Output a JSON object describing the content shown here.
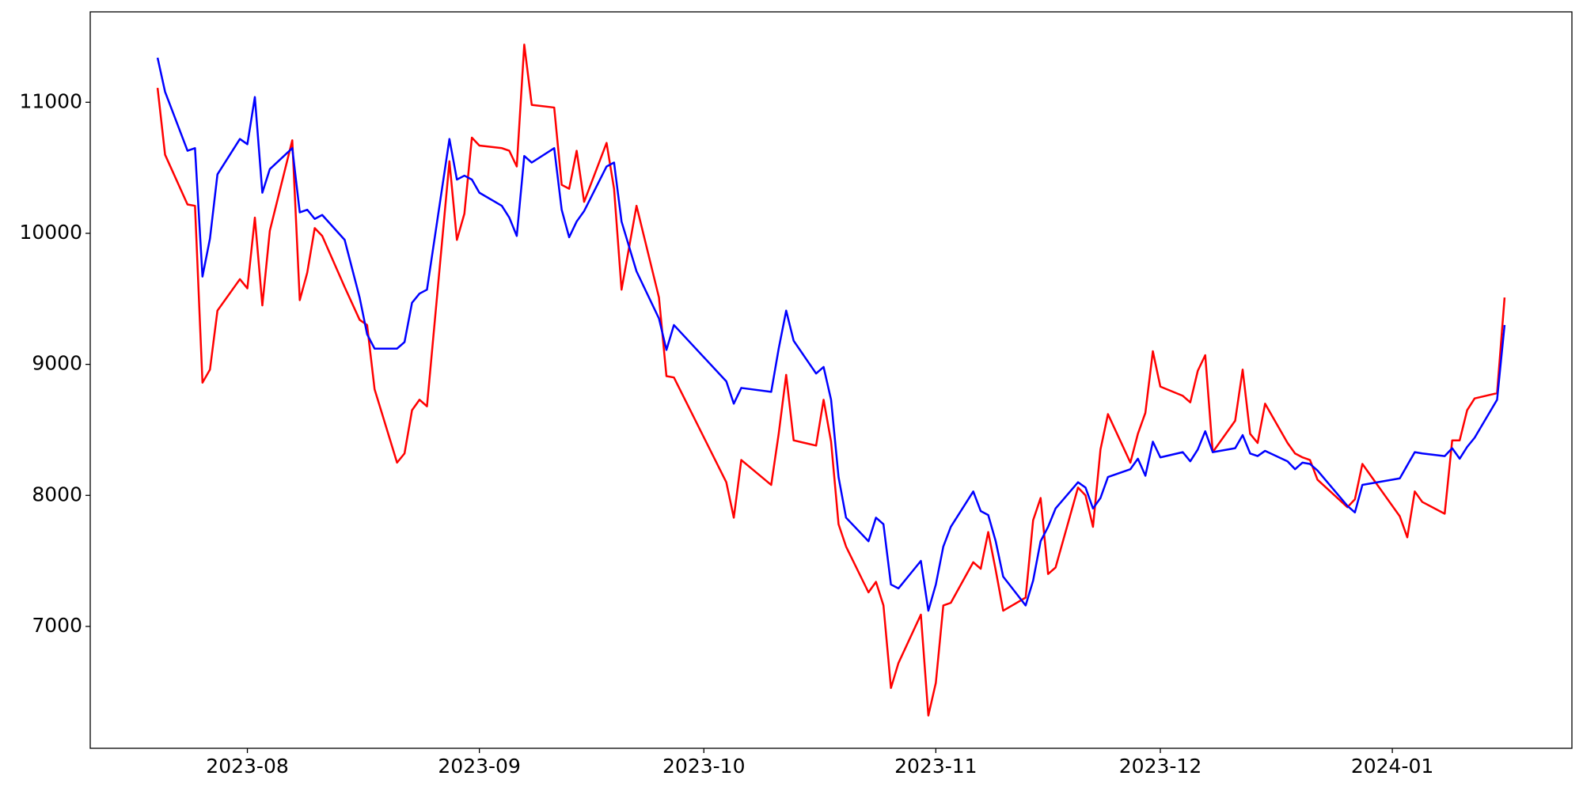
{
  "chart_data": {
    "type": "line",
    "x": [
      "2023-07-20",
      "2023-07-21",
      "2023-07-24",
      "2023-07-25",
      "2023-07-26",
      "2023-07-27",
      "2023-07-28",
      "2023-07-31",
      "2023-08-01",
      "2023-08-02",
      "2023-08-03",
      "2023-08-04",
      "2023-08-07",
      "2023-08-08",
      "2023-08-09",
      "2023-08-10",
      "2023-08-11",
      "2023-08-14",
      "2023-08-16",
      "2023-08-17",
      "2023-08-18",
      "2023-08-21",
      "2023-08-22",
      "2023-08-23",
      "2023-08-24",
      "2023-08-25",
      "2023-08-28",
      "2023-08-29",
      "2023-08-30",
      "2023-08-31",
      "2023-09-01",
      "2023-09-04",
      "2023-09-05",
      "2023-09-06",
      "2023-09-07",
      "2023-09-08",
      "2023-09-11",
      "2023-09-12",
      "2023-09-13",
      "2023-09-14",
      "2023-09-15",
      "2023-09-18",
      "2023-09-19",
      "2023-09-20",
      "2023-09-22",
      "2023-09-25",
      "2023-09-26",
      "2023-09-27",
      "2023-10-04",
      "2023-10-05",
      "2023-10-06",
      "2023-10-10",
      "2023-10-11",
      "2023-10-12",
      "2023-10-13",
      "2023-10-16",
      "2023-10-17",
      "2023-10-18",
      "2023-10-19",
      "2023-10-20",
      "2023-10-23",
      "2023-10-24",
      "2023-10-25",
      "2023-10-26",
      "2023-10-27",
      "2023-10-30",
      "2023-10-31",
      "2023-11-01",
      "2023-11-02",
      "2023-11-03",
      "2023-11-06",
      "2023-11-07",
      "2023-11-08",
      "2023-11-09",
      "2023-11-10",
      "2023-11-13",
      "2023-11-14",
      "2023-11-15",
      "2023-11-16",
      "2023-11-17",
      "2023-11-20",
      "2023-11-21",
      "2023-11-22",
      "2023-11-23",
      "2023-11-24",
      "2023-11-27",
      "2023-11-28",
      "2023-11-29",
      "2023-11-30",
      "2023-12-01",
      "2023-12-04",
      "2023-12-05",
      "2023-12-06",
      "2023-12-07",
      "2023-12-08",
      "2023-12-11",
      "2023-12-12",
      "2023-12-13",
      "2023-12-14",
      "2023-12-15",
      "2023-12-18",
      "2023-12-19",
      "2023-12-20",
      "2023-12-21",
      "2023-12-22",
      "2023-12-26",
      "2023-12-27",
      "2023-12-28",
      "2024-01-02",
      "2024-01-03",
      "2024-01-04",
      "2024-01-05",
      "2024-01-08",
      "2024-01-09",
      "2024-01-10",
      "2024-01-11",
      "2024-01-12",
      "2024-01-15",
      "2024-01-16"
    ],
    "series": [
      {
        "color": "red",
        "values": [
          11110,
          10600,
          10220,
          10210,
          8860,
          8960,
          9410,
          9650,
          9580,
          10120,
          9450,
          10020,
          10710,
          9490,
          9700,
          10040,
          9980,
          9590,
          9340,
          9300,
          8810,
          8250,
          8320,
          8650,
          8730,
          8680,
          10550,
          9950,
          10150,
          10730,
          10670,
          10650,
          10630,
          10510,
          11440,
          10980,
          10960,
          10370,
          10340,
          10630,
          10240,
          10690,
          10340,
          9570,
          10210,
          9510,
          8910,
          8900,
          8100,
          7830,
          8270,
          8080,
          8470,
          8920,
          8420,
          8380,
          8730,
          8410,
          7780,
          7610,
          7260,
          7340,
          7160,
          6530,
          6720,
          7090,
          6320,
          6570,
          7160,
          7180,
          7490,
          7440,
          7720,
          7430,
          7120,
          7220,
          7810,
          7980,
          7400,
          7450,
          8060,
          8000,
          7760,
          8350,
          8620,
          8250,
          8470,
          8630,
          9100,
          8830,
          8760,
          8710,
          8950,
          9070,
          8330,
          8570,
          8960,
          8470,
          8400,
          8700,
          8400,
          8320,
          8290,
          8270,
          8120,
          7910,
          7970,
          8240,
          7840,
          7680,
          8030,
          7950,
          7860,
          8420,
          8420,
          8650,
          8740,
          8780,
          9510
        ]
      },
      {
        "color": "blue",
        "values": [
          11340,
          11080,
          10630,
          10650,
          9670,
          9960,
          10450,
          10720,
          10680,
          11040,
          10310,
          10490,
          10650,
          10160,
          10180,
          10110,
          10140,
          9950,
          9510,
          9230,
          9120,
          9120,
          9170,
          9470,
          9540,
          9570,
          10720,
          10410,
          10440,
          10410,
          10310,
          10210,
          10120,
          9980,
          10590,
          10540,
          10650,
          10180,
          9970,
          10090,
          10170,
          10510,
          10540,
          10090,
          9710,
          9350,
          9110,
          9300,
          8870,
          8700,
          8820,
          8790,
          9120,
          9410,
          9180,
          8930,
          8980,
          8730,
          8140,
          7830,
          7650,
          7830,
          7780,
          7320,
          7290,
          7500,
          7120,
          7320,
          7610,
          7760,
          8030,
          7880,
          7850,
          7650,
          7380,
          7160,
          7350,
          7650,
          7760,
          7900,
          8100,
          8060,
          7900,
          7980,
          8140,
          8200,
          8280,
          8150,
          8410,
          8290,
          8330,
          8260,
          8350,
          8490,
          8330,
          8360,
          8460,
          8320,
          8300,
          8340,
          8260,
          8200,
          8250,
          8240,
          8190,
          7920,
          7870,
          8080,
          8130,
          8230,
          8330,
          8320,
          8300,
          8360,
          8280,
          8370,
          8440,
          8730,
          9300
        ]
      }
    ],
    "xlim": [
      "2023-07-11",
      "2024-01-25"
    ],
    "xticks": [
      {
        "value": "2023-08-01",
        "label": "2023-08"
      },
      {
        "value": "2023-09-01",
        "label": "2023-09"
      },
      {
        "value": "2023-10-01",
        "label": "2023-10"
      },
      {
        "value": "2023-11-01",
        "label": "2023-11"
      },
      {
        "value": "2023-12-01",
        "label": "2023-12"
      },
      {
        "value": "2024-01-01",
        "label": "2024-01"
      }
    ],
    "ylim": [
      6070,
      11690
    ],
    "yticks": [
      7000,
      8000,
      9000,
      10000,
      11000
    ],
    "grid": false
  }
}
